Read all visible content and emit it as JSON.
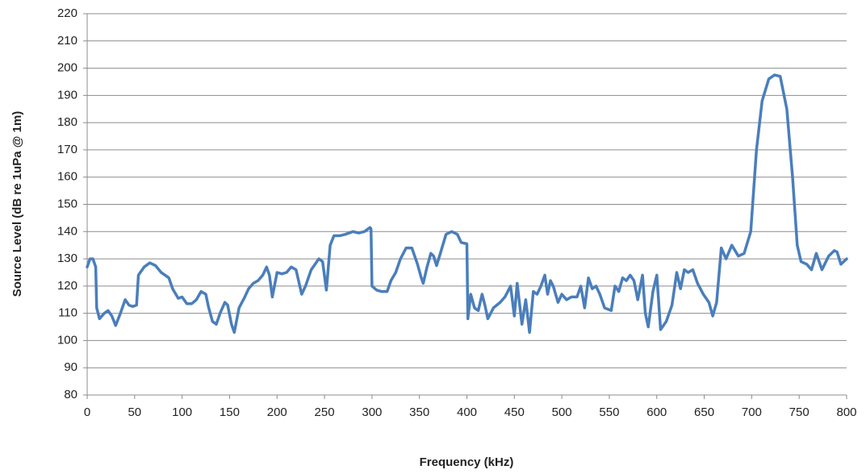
{
  "chart_data": {
    "type": "line",
    "x_label": "Frequency (kHz)",
    "y_label": "Source Level   (dB re 1uPa @ 1m)",
    "x": [
      0,
      3,
      6,
      9,
      10,
      13,
      18,
      22,
      26,
      30,
      35,
      40,
      44,
      48,
      52,
      54,
      60,
      66,
      72,
      78,
      82,
      86,
      90,
      96,
      100,
      105,
      110,
      115,
      120,
      125,
      128,
      132,
      136,
      140,
      145,
      148,
      152,
      155,
      160,
      166,
      170,
      175,
      180,
      185,
      189,
      192,
      195,
      200,
      205,
      210,
      215,
      220,
      226,
      230,
      236,
      244,
      248,
      252,
      256,
      260,
      266,
      272,
      280,
      286,
      292,
      298,
      299,
      300,
      305,
      310,
      316,
      320,
      325,
      330,
      336,
      342,
      348,
      352,
      354,
      358,
      362,
      365,
      368,
      372,
      378,
      384,
      390,
      394,
      400,
      401,
      404,
      408,
      412,
      416,
      419,
      422,
      428,
      435,
      440,
      446,
      450,
      453,
      458,
      462,
      466,
      470,
      474,
      478,
      482,
      485,
      488,
      491,
      496,
      500,
      505,
      510,
      516,
      520,
      524,
      528,
      532,
      536,
      540,
      545,
      552,
      556,
      560,
      564,
      568,
      572,
      576,
      580,
      585,
      588,
      591,
      596,
      600,
      604,
      610,
      616,
      621,
      625,
      629,
      633,
      638,
      643,
      649,
      655,
      659,
      663,
      668,
      673,
      679,
      686,
      692,
      699,
      705,
      711,
      718,
      724,
      730,
      737,
      743,
      748,
      752,
      758,
      763,
      768,
      774,
      781,
      787,
      790,
      794,
      800
    ],
    "series": [
      {
        "name": "Source Level",
        "color": "#4a7ebb",
        "values": [
          127,
          130,
          130,
          127,
          112,
          108,
          110,
          111,
          109,
          105.5,
          110,
          115,
          113,
          112.5,
          113,
          124,
          127,
          128.5,
          127.5,
          125,
          124,
          123,
          119,
          115.5,
          116,
          113.5,
          113.5,
          115,
          118,
          117,
          112,
          107,
          106,
          110,
          114,
          113,
          106,
          103,
          112,
          116,
          119,
          121,
          122,
          124,
          127,
          124,
          116,
          125,
          124.5,
          125,
          127,
          126,
          117,
          120,
          126,
          130,
          129,
          118.5,
          135,
          138.5,
          138.5,
          139,
          140,
          139.5,
          140,
          141.5,
          141,
          120,
          118.5,
          118,
          118,
          122,
          125,
          130,
          134,
          134,
          128,
          123,
          121,
          127,
          132,
          131,
          127.5,
          132,
          139,
          140,
          139,
          136,
          135.5,
          108,
          117,
          112,
          111,
          117,
          113,
          108,
          112,
          114,
          116,
          120,
          109,
          121,
          106,
          115,
          103,
          118,
          117,
          120,
          124,
          117,
          122,
          120,
          114,
          117,
          115,
          116,
          116,
          120,
          112,
          123,
          119,
          120,
          117,
          112,
          111,
          120,
          118,
          123,
          122,
          124,
          122,
          115,
          124,
          110,
          105,
          118,
          124,
          104,
          107,
          113,
          125,
          119,
          126,
          125,
          126,
          121,
          117,
          114,
          109,
          114,
          134,
          130,
          135,
          131,
          132,
          140,
          170,
          188,
          196,
          197.5,
          197,
          185,
          160,
          135,
          129,
          128,
          126,
          132,
          126,
          131,
          133,
          132.5,
          128,
          130
        ]
      }
    ],
    "xlim": [
      0,
      800
    ],
    "xticks": [
      0,
      50,
      100,
      150,
      200,
      250,
      300,
      350,
      400,
      450,
      500,
      550,
      600,
      650,
      700,
      750,
      800
    ],
    "ylim": [
      80,
      220
    ],
    "yticks": [
      80,
      90,
      100,
      110,
      120,
      130,
      140,
      150,
      160,
      170,
      180,
      190,
      200,
      210,
      220
    ],
    "grid": true
  }
}
